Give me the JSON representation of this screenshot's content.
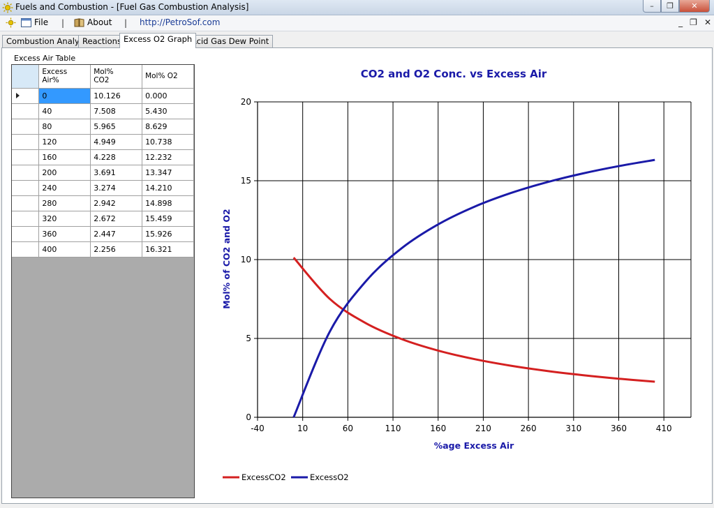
{
  "window": {
    "title": "Fuels and Combustion - [Fuel Gas Combustion Analysis]",
    "controls": {
      "minimize": "–",
      "restore": "❐",
      "close": "✕"
    }
  },
  "menu": {
    "file": "File",
    "separator": "|",
    "about": "About",
    "link": "http://PetroSof.com",
    "mdi": {
      "minimize": "_",
      "restore": "❐",
      "close": "✕"
    }
  },
  "tabs": [
    {
      "label": "Combustion Analysis"
    },
    {
      "label": "Reactions"
    },
    {
      "label": "Excess O2 Graph"
    },
    {
      "label": "Acid Gas Dew Point"
    }
  ],
  "table": {
    "group_label": "Excess Air Table",
    "headers": [
      "Excess Air%",
      "Mol% CO2",
      "Mol% O2"
    ],
    "rows": [
      [
        "0",
        "10.126",
        "0.000"
      ],
      [
        "40",
        "7.508",
        "5.430"
      ],
      [
        "80",
        "5.965",
        "8.629"
      ],
      [
        "120",
        "4.949",
        "10.738"
      ],
      [
        "160",
        "4.228",
        "12.232"
      ],
      [
        "200",
        "3.691",
        "13.347"
      ],
      [
        "240",
        "3.274",
        "14.210"
      ],
      [
        "280",
        "2.942",
        "14.898"
      ],
      [
        "320",
        "2.672",
        "15.459"
      ],
      [
        "360",
        "2.447",
        "15.926"
      ],
      [
        "400",
        "2.256",
        "16.321"
      ]
    ]
  },
  "chart_data": {
    "type": "line",
    "title": "CO2 and O2 Conc. vs Excess Air",
    "xlabel": "%age Excess Air",
    "ylabel": "Mol% of CO2 and O2",
    "xlim": [
      -40,
      440
    ],
    "ylim": [
      0,
      20
    ],
    "xticks": [
      -40,
      10,
      60,
      110,
      160,
      210,
      260,
      310,
      360,
      410
    ],
    "yticks": [
      0,
      5,
      10,
      15,
      20
    ],
    "grid": true,
    "legend_position": "bottom-left",
    "series": [
      {
        "name": "ExcessCO2",
        "color": "#d42020",
        "x": [
          0,
          40,
          80,
          120,
          160,
          200,
          240,
          280,
          320,
          360,
          400
        ],
        "y": [
          10.126,
          7.508,
          5.965,
          4.949,
          4.228,
          3.691,
          3.274,
          2.942,
          2.672,
          2.447,
          2.256
        ]
      },
      {
        "name": "ExcessO2",
        "color": "#1a1aa8",
        "x": [
          0,
          40,
          80,
          120,
          160,
          200,
          240,
          280,
          320,
          360,
          400
        ],
        "y": [
          0.0,
          5.43,
          8.629,
          10.738,
          12.232,
          13.347,
          14.21,
          14.898,
          15.459,
          15.926,
          16.321
        ]
      }
    ]
  }
}
